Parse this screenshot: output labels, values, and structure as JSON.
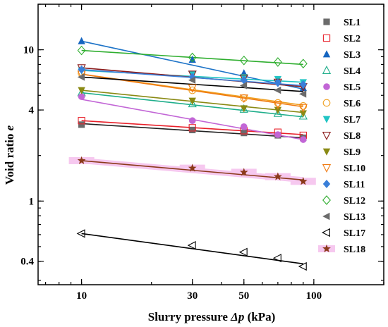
{
  "chart_data": {
    "type": "scatter",
    "xlabel": "Slurry pressure Δp (kPa)",
    "xlabel_parts": {
      "before": "Slurry pressure ",
      "italic": "Δp",
      "after": " (kPa)"
    },
    "ylabel": "Void ratio e",
    "ylabel_parts": {
      "before": "Void ratio ",
      "italic": "e"
    },
    "x_scale": "log",
    "y_scale": "log",
    "xlim": [
      6.5,
      200
    ],
    "ylim": [
      0.28,
      20
    ],
    "x_ticks": [
      10,
      30,
      50,
      100
    ],
    "x_tick_labels": [
      "10",
      "30",
      "50",
      "100"
    ],
    "y_ticks": [
      0.4,
      1,
      4,
      10
    ],
    "y_tick_labels": [
      "0.4",
      "1",
      "4",
      "10"
    ],
    "grid": false,
    "legend_position": "right",
    "series": [
      {
        "name": "SL1",
        "marker": "square-filled",
        "color": "#6b6b6b",
        "line_color": "#222222",
        "x": [
          10,
          30,
          50,
          70,
          90
        ],
        "y": [
          3.2,
          2.95,
          2.82,
          2.72,
          2.62
        ],
        "fit": [
          [
            10,
            3.25
          ],
          [
            90,
            2.62
          ]
        ]
      },
      {
        "name": "SL2",
        "marker": "square-open",
        "color": "#e8202a",
        "line_color": "#e8202a",
        "x": [
          10,
          30,
          50,
          70,
          90
        ],
        "y": [
          3.4,
          3.05,
          2.92,
          2.85,
          2.72
        ],
        "fit": [
          [
            10,
            3.4
          ],
          [
            90,
            2.75
          ]
        ]
      },
      {
        "name": "SL3",
        "marker": "triangle-up-filled",
        "color": "#1565c0",
        "line_color": "#1e74c8",
        "x": [
          10,
          30,
          50,
          70,
          90
        ],
        "y": [
          11.4,
          8.6,
          7.0,
          6.3,
          5.6
        ],
        "fit": [
          [
            10,
            11.4
          ],
          [
            90,
            5.5
          ]
        ]
      },
      {
        "name": "SL4",
        "marker": "triangle-up-open",
        "color": "#1fae8b",
        "line_color": "#1fae8b",
        "x": [
          10,
          30,
          50,
          70,
          90
        ],
        "y": [
          5.2,
          4.4,
          4.05,
          3.8,
          3.65
        ],
        "fit": [
          [
            10,
            5.2
          ],
          [
            90,
            3.6
          ]
        ]
      },
      {
        "name": "SL5",
        "marker": "circle-filled",
        "color": "#c266d6",
        "line_color": "#c266d6",
        "x": [
          10,
          30,
          50,
          70,
          90
        ],
        "y": [
          4.9,
          3.4,
          3.1,
          2.75,
          2.55
        ],
        "fit": [
          [
            10,
            4.7
          ],
          [
            90,
            2.55
          ]
        ]
      },
      {
        "name": "SL6",
        "marker": "circle-open",
        "color": "#f0a020",
        "line_color": "#f0a020",
        "x": [
          10,
          30,
          50,
          70,
          90
        ],
        "y": [
          7.0,
          5.4,
          4.8,
          4.45,
          4.25
        ],
        "fit": [
          [
            10,
            6.9
          ],
          [
            90,
            4.3
          ]
        ]
      },
      {
        "name": "SL7",
        "marker": "triangle-down-filled",
        "color": "#20c4c4",
        "line_color": "#20c4c4",
        "x": [
          10,
          30,
          50,
          70,
          90
        ],
        "y": [
          7.3,
          6.9,
          6.6,
          6.4,
          6.1
        ],
        "fit": [
          [
            10,
            7.3
          ],
          [
            90,
            6.1
          ]
        ]
      },
      {
        "name": "SL8",
        "marker": "triangle-down-open",
        "color": "#8b1a1a",
        "line_color": "#8b1a1a",
        "x": [
          10,
          30,
          50,
          70,
          90
        ],
        "y": [
          7.6,
          6.9,
          6.5,
          6.1,
          5.7
        ],
        "fit": [
          [
            10,
            7.6
          ],
          [
            90,
            5.7
          ]
        ]
      },
      {
        "name": "SL9",
        "marker": "triangle-down-filled",
        "color": "#8a8a14",
        "line_color": "#8a8a14",
        "x": [
          10,
          30,
          50,
          70,
          90
        ],
        "y": [
          5.4,
          4.6,
          4.1,
          4.0,
          3.8
        ],
        "fit": [
          [
            10,
            5.4
          ],
          [
            90,
            3.85
          ]
        ]
      },
      {
        "name": "SL10",
        "marker": "triangle-down-open",
        "color": "#f07a10",
        "line_color": "#f07a10",
        "x": [
          10,
          30,
          50,
          70,
          90
        ],
        "y": [
          6.9,
          5.6,
          4.8,
          4.35,
          4.15
        ],
        "fit": [
          [
            10,
            6.9
          ],
          [
            90,
            4.2
          ]
        ]
      },
      {
        "name": "SL11",
        "marker": "diamond-filled",
        "color": "#3a7fd9",
        "line_color": "#3a7fd9",
        "x": [
          10,
          30,
          50,
          70,
          90
        ],
        "y": [
          7.4,
          6.6,
          6.3,
          6.05,
          5.9
        ],
        "fit": [
          [
            10,
            7.4
          ],
          [
            90,
            5.8
          ]
        ]
      },
      {
        "name": "SL12",
        "marker": "diamond-open",
        "color": "#2fae2f",
        "line_color": "#2fae2f",
        "x": [
          10,
          30,
          50,
          70,
          90
        ],
        "y": [
          9.9,
          8.9,
          8.5,
          8.3,
          8.1
        ],
        "fit": [
          [
            10,
            9.9
          ],
          [
            90,
            8.0
          ]
        ]
      },
      {
        "name": "SL13",
        "marker": "triangle-left-filled",
        "color": "#6b6b6b",
        "line_color": "#000000",
        "x": [
          10,
          30,
          50,
          70,
          90
        ],
        "y": [
          6.6,
          6.3,
          5.8,
          5.4,
          5.1
        ],
        "fit": [
          [
            10,
            6.6
          ],
          [
            90,
            5.3
          ]
        ]
      },
      {
        "name": "SL17",
        "marker": "triangle-left-open",
        "color": "#000000",
        "line_color": "#000000",
        "x": [
          10,
          30,
          50,
          70,
          90
        ],
        "y": [
          0.61,
          0.51,
          0.46,
          0.42,
          0.37
        ],
        "fit": [
          [
            10,
            0.61
          ],
          [
            90,
            0.385
          ]
        ]
      },
      {
        "name": "SL18",
        "marker": "star-filled",
        "color": "#8b3a1a",
        "line_color": "#8b3a1a",
        "x": [
          10,
          30,
          50,
          70,
          90
        ],
        "y": [
          1.85,
          1.65,
          1.55,
          1.45,
          1.35
        ],
        "fit": [
          [
            10,
            1.85
          ],
          [
            90,
            1.38
          ]
        ],
        "highlight": "#f6c8ef"
      }
    ]
  }
}
